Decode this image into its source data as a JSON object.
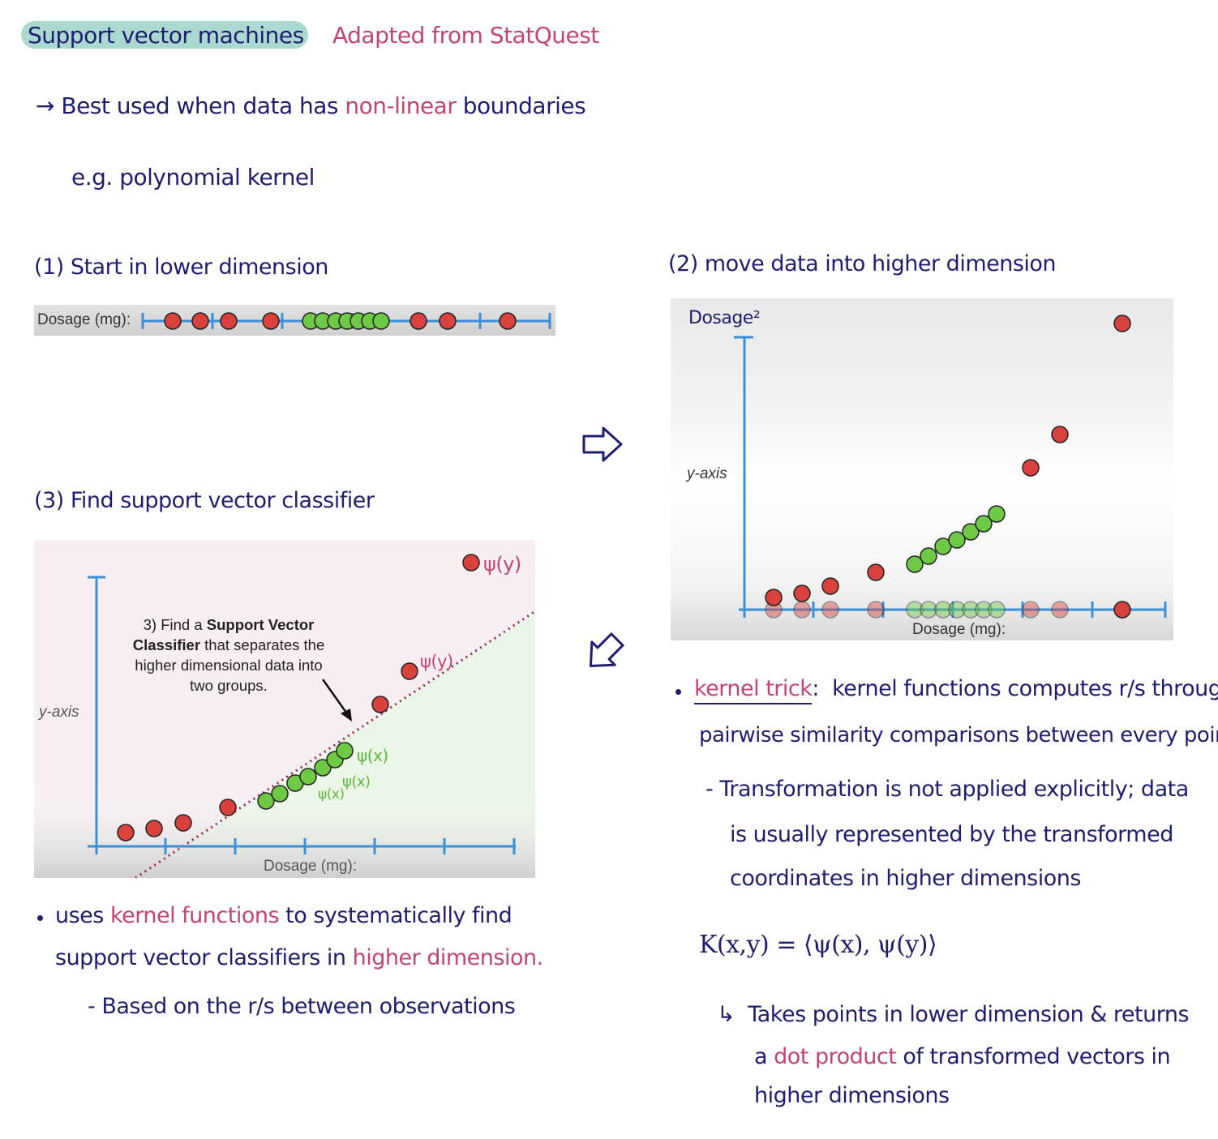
{
  "header": {
    "title": "Support vector machines",
    "source": "Adapted from StatQuest"
  },
  "intro": {
    "arrow": "→",
    "line_start": "Best used when data has",
    "highlight": "non-linear",
    "line_end": "boundaries",
    "example": "e.g. polynomial kernel"
  },
  "steps": {
    "step1": "(1) Start in lower dimension",
    "step2": "(2) move data into higher dimension",
    "step3": "(3) Find support vector classifier"
  },
  "panel1": {
    "axis_label": "Dosage (mg):"
  },
  "panel2": {
    "y_top_label": "Dosage²",
    "y_label": "y-axis",
    "x_label": "Dosage (mg):"
  },
  "panel3": {
    "y_label": "y-axis",
    "x_label": "Dosage (mg):",
    "callout_l1": "3) Find a ",
    "callout_l1b": "Support Vector",
    "callout_l2a": "Classifier",
    "callout_l2b": " that separates the",
    "callout_l3": "higher dimensional data into",
    "callout_l4": "two groups.",
    "ann_psi_y_top": "ψ(y)",
    "ann_psi_y_mid": "ψ(y)",
    "ann_psi_x_1": "ψ(x)",
    "ann_psi_x_2": "ψ(x)",
    "ann_psi_x_3": "ψ(x)"
  },
  "left_notes": {
    "b1_pre": "uses",
    "b1_hl": "kernel functions",
    "b1_post": "to systematically find",
    "b1_l2_pre": "support vector classifiers in",
    "b1_l2_hl": "higher dimension.",
    "sub": "- Based on the r/s between observations"
  },
  "right_notes": {
    "kt_label": "kernel trick",
    "kt_colon": ":",
    "kt_text": "kernel functions computes r/s through",
    "kt_l2": "pairwise similarity comparisons between every point",
    "sub_l1": "- Transformation is not applied explicitly; data",
    "sub_l2": "is usually represented by the transformed",
    "sub_l3": "coordinates in higher dimensions",
    "formula": "K(x,y) = ⟨ψ(x), ψ(y)⟩",
    "ret_arrow": "↳",
    "ret_l1": "Takes points in lower dimension & returns",
    "ret_l2_pre": "a",
    "ret_l2_hl": "dot product",
    "ret_l2_post": "of transformed vectors in",
    "ret_l3": "higher dimensions"
  },
  "colors": {
    "navy_ink": "#1f1e6e",
    "pink_ink": "#c2456e",
    "green_ink": "#5fb63f",
    "teal_highlight": "#a9d9d0",
    "red_point": "#d9423c",
    "green_point": "#6ec944",
    "axis_blue": "#3b8fd6"
  },
  "icons": [
    "arrow-right-outline-icon",
    "arrow-down-left-outline-icon"
  ]
}
